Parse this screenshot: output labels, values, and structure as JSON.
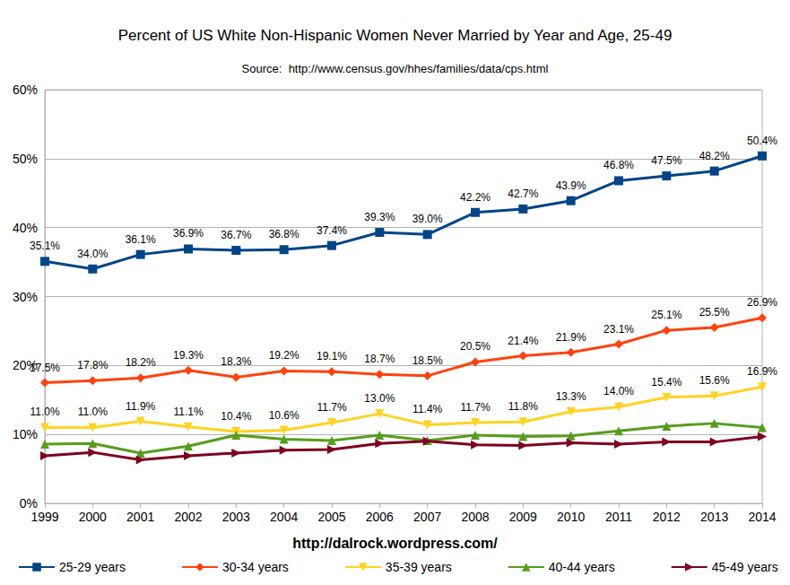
{
  "chart_data": {
    "type": "line",
    "title": "Percent of US White Non-Hispanic Women Never Married by Year and Age, 25-49",
    "subtitle": "Source:  http://www.census.gov/hhes/families/data/cps.html",
    "annotations": [
      {
        "text": "http://dalrock.wordpress.com/"
      }
    ],
    "categories": [
      "1999",
      "2000",
      "2001",
      "2002",
      "2003",
      "2004",
      "2005",
      "2006",
      "2007",
      "2008",
      "2009",
      "2010",
      "2011",
      "2012",
      "2013",
      "2014"
    ],
    "ylim": [
      0,
      60
    ],
    "yticks": [
      {
        "value": 0,
        "label": "0%"
      },
      {
        "value": 10,
        "label": "10%"
      },
      {
        "value": 20,
        "label": "20%"
      },
      {
        "value": 30,
        "label": "30%"
      },
      {
        "value": 40,
        "label": "40%"
      },
      {
        "value": 50,
        "label": "50%"
      },
      {
        "value": 60,
        "label": "60%"
      }
    ],
    "grid": true,
    "legend": "bottom",
    "series": [
      {
        "name": "25-29 years",
        "color": "#004586",
        "marker": "square",
        "data_labels": true,
        "values": [
          35.1,
          34.0,
          36.1,
          36.9,
          36.7,
          36.8,
          37.4,
          39.3,
          39.0,
          42.2,
          42.7,
          43.9,
          46.8,
          47.5,
          48.2,
          50.4
        ],
        "value_labels": [
          "35.1%",
          "34.0%",
          "36.1%",
          "36.9%",
          "36.7%",
          "36.8%",
          "37.4%",
          "39.3%",
          "39.0%",
          "42.2%",
          "42.7%",
          "43.9%",
          "46.8%",
          "47.5%",
          "48.2%",
          "50.4%"
        ]
      },
      {
        "name": "30-34 years",
        "color": "#ff420e",
        "marker": "diamond",
        "data_labels": true,
        "values": [
          17.5,
          17.8,
          18.2,
          19.3,
          18.3,
          19.2,
          19.1,
          18.7,
          18.5,
          20.5,
          21.4,
          21.9,
          23.1,
          25.1,
          25.5,
          26.9
        ],
        "value_labels": [
          "17.5%",
          "17.8%",
          "18.2%",
          "19.3%",
          "18.3%",
          "19.2%",
          "19.1%",
          "18.7%",
          "18.5%",
          "20.5%",
          "21.4%",
          "21.9%",
          "23.1%",
          "25.1%",
          "25.5%",
          "26.9%"
        ]
      },
      {
        "name": "35-39 years",
        "color": "#ffd320",
        "marker": "triangle-down",
        "data_labels": true,
        "values": [
          11.0,
          11.0,
          11.9,
          11.1,
          10.4,
          10.6,
          11.7,
          13.0,
          11.4,
          11.7,
          11.8,
          13.3,
          14.0,
          15.4,
          15.6,
          16.9
        ],
        "value_labels": [
          "11.0%",
          "11.0%",
          "11.9%",
          "11.1%",
          "10.4%",
          "10.6%",
          "11.7%",
          "13.0%",
          "11.4%",
          "11.7%",
          "11.8%",
          "13.3%",
          "14.0%",
          "15.4%",
          "15.6%",
          "16.9%"
        ]
      },
      {
        "name": "40-44 years",
        "color": "#579d1c",
        "marker": "triangle",
        "data_labels": false,
        "values": [
          8.6,
          8.7,
          7.3,
          8.3,
          9.9,
          9.3,
          9.1,
          9.9,
          9.1,
          9.9,
          9.7,
          9.8,
          10.5,
          11.2,
          11.6,
          11.0
        ]
      },
      {
        "name": "45-49 years",
        "color": "#7e0021",
        "marker": "triangle-right",
        "data_labels": false,
        "values": [
          6.9,
          7.4,
          6.3,
          6.9,
          7.3,
          7.7,
          7.8,
          8.7,
          9.0,
          8.5,
          8.4,
          8.8,
          8.6,
          8.9,
          8.9,
          9.7
        ]
      }
    ]
  }
}
